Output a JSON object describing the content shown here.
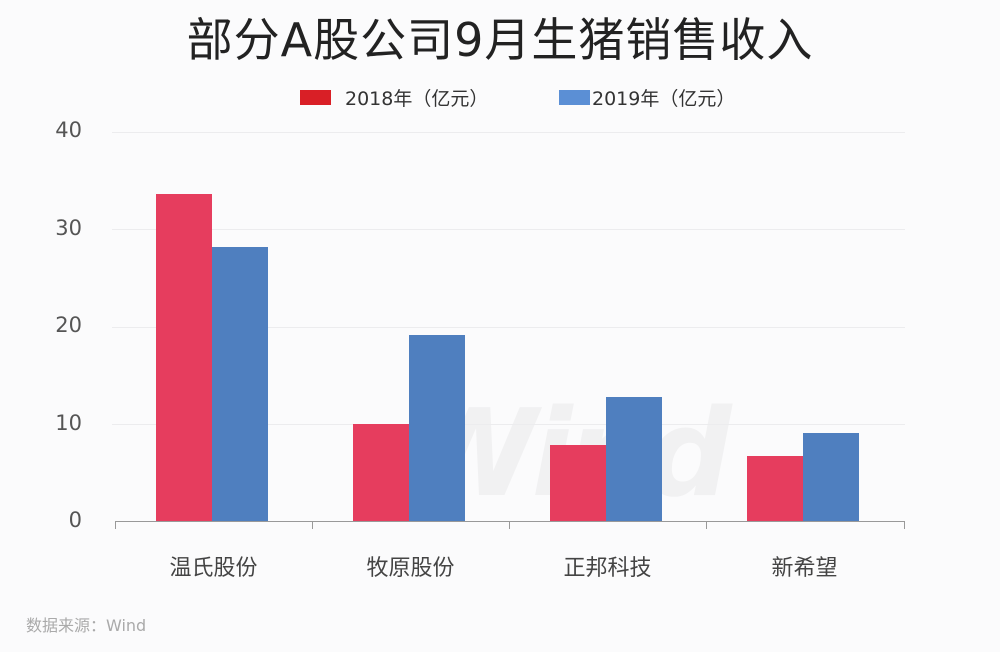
{
  "title": "部分A股公司9月生猪销售收入",
  "legend": [
    {
      "label": "2018年（亿元）",
      "color": "#d91f26"
    },
    {
      "label": "2019年（亿元）",
      "color": "#5b8fd5"
    }
  ],
  "y_ticks": [
    "0",
    "10",
    "20",
    "30",
    "40"
  ],
  "watermark": "Wind",
  "source": "数据来源：Wind",
  "colors": {
    "bar_2018": "#e63d5e",
    "bar_2019": "#4f7fbf"
  },
  "chart_data": {
    "type": "bar",
    "title": "部分A股公司9月生猪销售收入",
    "categories": [
      "温氏股份",
      "牧原股份",
      "正邦科技",
      "新希望"
    ],
    "series": [
      {
        "name": "2018年（亿元）",
        "values": [
          33.6,
          10.0,
          7.8,
          6.7
        ]
      },
      {
        "name": "2019年（亿元）",
        "values": [
          28.2,
          19.1,
          12.8,
          9.1
        ]
      }
    ],
    "xlabel": "",
    "ylabel": "",
    "ylim": [
      0,
      40
    ],
    "yticks": [
      0,
      10,
      20,
      30,
      40
    ],
    "grid": true,
    "legend_position": "top",
    "annotations": [
      "数据来源：Wind"
    ]
  }
}
